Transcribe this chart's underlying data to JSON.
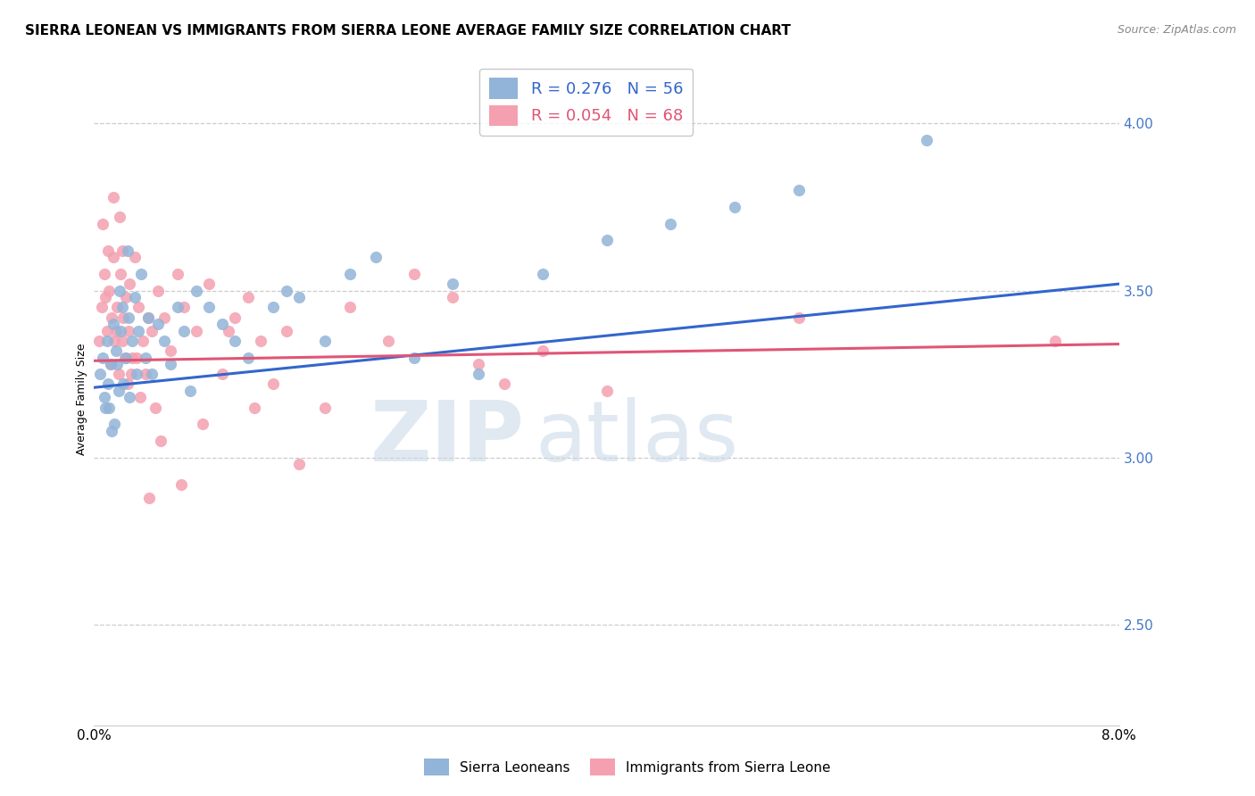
{
  "title": "SIERRA LEONEAN VS IMMIGRANTS FROM SIERRA LEONE AVERAGE FAMILY SIZE CORRELATION CHART",
  "source": "Source: ZipAtlas.com",
  "ylabel": "Average Family Size",
  "xlim": [
    0.0,
    8.0
  ],
  "ylim": [
    2.2,
    4.15
  ],
  "yticks": [
    2.5,
    3.0,
    3.5,
    4.0
  ],
  "blue_R": 0.276,
  "blue_N": 56,
  "pink_R": 0.054,
  "pink_N": 68,
  "blue_color": "#92B4D8",
  "pink_color": "#F4A0B0",
  "blue_line_color": "#3366CC",
  "pink_line_color": "#E05575",
  "blue_trend_start": 3.21,
  "blue_trend_end": 3.52,
  "pink_trend_start": 3.29,
  "pink_trend_end": 3.34,
  "blue_x": [
    0.05,
    0.07,
    0.08,
    0.1,
    0.11,
    0.12,
    0.13,
    0.15,
    0.16,
    0.17,
    0.18,
    0.19,
    0.2,
    0.21,
    0.22,
    0.23,
    0.25,
    0.27,
    0.28,
    0.3,
    0.32,
    0.33,
    0.35,
    0.37,
    0.4,
    0.42,
    0.45,
    0.5,
    0.55,
    0.6,
    0.65,
    0.7,
    0.75,
    0.8,
    0.9,
    1.0,
    1.1,
    1.2,
    1.4,
    1.5,
    1.6,
    1.8,
    2.0,
    2.2,
    2.5,
    2.8,
    3.0,
    3.5,
    4.0,
    4.5,
    5.0,
    5.5,
    6.5,
    0.09,
    0.14,
    0.26
  ],
  "blue_y": [
    3.25,
    3.3,
    3.18,
    3.35,
    3.22,
    3.15,
    3.28,
    3.4,
    3.1,
    3.32,
    3.28,
    3.2,
    3.5,
    3.38,
    3.45,
    3.22,
    3.3,
    3.42,
    3.18,
    3.35,
    3.48,
    3.25,
    3.38,
    3.55,
    3.3,
    3.42,
    3.25,
    3.4,
    3.35,
    3.28,
    3.45,
    3.38,
    3.2,
    3.5,
    3.45,
    3.4,
    3.35,
    3.3,
    3.45,
    3.5,
    3.48,
    3.35,
    3.55,
    3.6,
    3.3,
    3.52,
    3.25,
    3.55,
    3.65,
    3.7,
    3.75,
    3.8,
    3.95,
    3.15,
    3.08,
    3.62
  ],
  "pink_x": [
    0.04,
    0.06,
    0.08,
    0.09,
    0.1,
    0.11,
    0.12,
    0.13,
    0.14,
    0.15,
    0.16,
    0.17,
    0.18,
    0.19,
    0.2,
    0.21,
    0.22,
    0.23,
    0.24,
    0.25,
    0.26,
    0.27,
    0.28,
    0.3,
    0.32,
    0.35,
    0.38,
    0.4,
    0.42,
    0.45,
    0.48,
    0.5,
    0.55,
    0.6,
    0.65,
    0.7,
    0.8,
    0.9,
    1.0,
    1.1,
    1.2,
    1.3,
    1.4,
    1.5,
    1.8,
    2.0,
    2.3,
    2.5,
    3.0,
    3.5,
    4.0,
    5.5,
    7.5,
    0.07,
    0.29,
    0.33,
    0.36,
    0.43,
    0.52,
    0.68,
    0.85,
    1.05,
    1.25,
    1.6,
    2.8,
    3.2,
    0.15,
    0.22
  ],
  "pink_y": [
    3.35,
    3.45,
    3.55,
    3.48,
    3.38,
    3.62,
    3.5,
    3.28,
    3.42,
    3.6,
    3.35,
    3.38,
    3.45,
    3.25,
    3.72,
    3.55,
    3.35,
    3.42,
    3.3,
    3.48,
    3.22,
    3.38,
    3.52,
    3.3,
    3.6,
    3.45,
    3.35,
    3.25,
    3.42,
    3.38,
    3.15,
    3.5,
    3.42,
    3.32,
    3.55,
    3.45,
    3.38,
    3.52,
    3.25,
    3.42,
    3.48,
    3.35,
    3.22,
    3.38,
    3.15,
    3.45,
    3.35,
    3.55,
    3.28,
    3.32,
    3.2,
    3.42,
    3.35,
    3.7,
    3.25,
    3.3,
    3.18,
    2.88,
    3.05,
    2.92,
    3.1,
    3.38,
    3.15,
    2.98,
    3.48,
    3.22,
    3.78,
    3.62
  ],
  "watermark_zip": "ZIP",
  "watermark_atlas": "atlas",
  "legend_box_color": "#FFFFFF",
  "grid_color": "#CCCCCC",
  "background_color": "#FFFFFF",
  "title_fontsize": 11,
  "axis_label_fontsize": 9,
  "tick_fontsize": 11,
  "legend_fontsize": 13,
  "source_fontsize": 9
}
